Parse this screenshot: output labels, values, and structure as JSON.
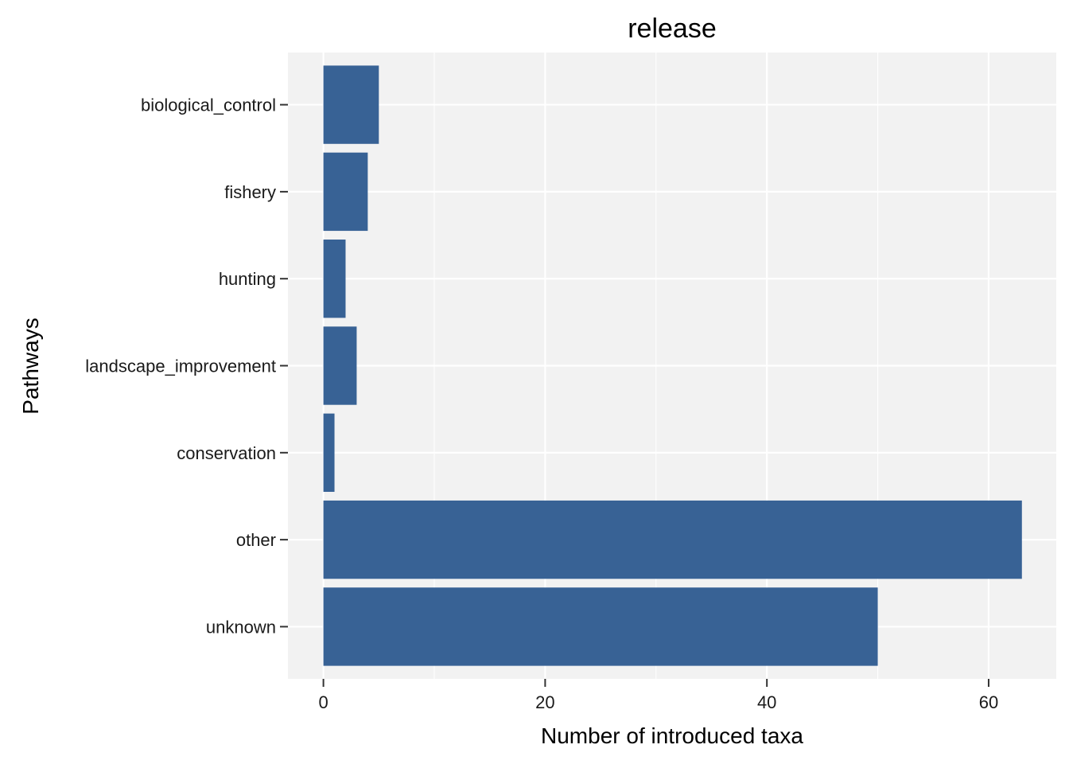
{
  "chart_data": {
    "type": "bar",
    "orientation": "horizontal",
    "title": "release",
    "xlabel": "Number of introduced taxa",
    "ylabel": "Pathways",
    "categories": [
      "biological_control",
      "fishery",
      "hunting",
      "landscape_improvement",
      "conservation",
      "other",
      "unknown"
    ],
    "values": [
      5,
      4,
      2,
      3,
      1,
      63,
      50
    ],
    "xlim": [
      -3.2,
      66.1
    ],
    "xticks": [
      0,
      20,
      40,
      60
    ],
    "grid": true,
    "legend": "none",
    "colors": {
      "bar": "#386295",
      "panel": "#f2f2f2",
      "grid": "#ffffff"
    }
  }
}
